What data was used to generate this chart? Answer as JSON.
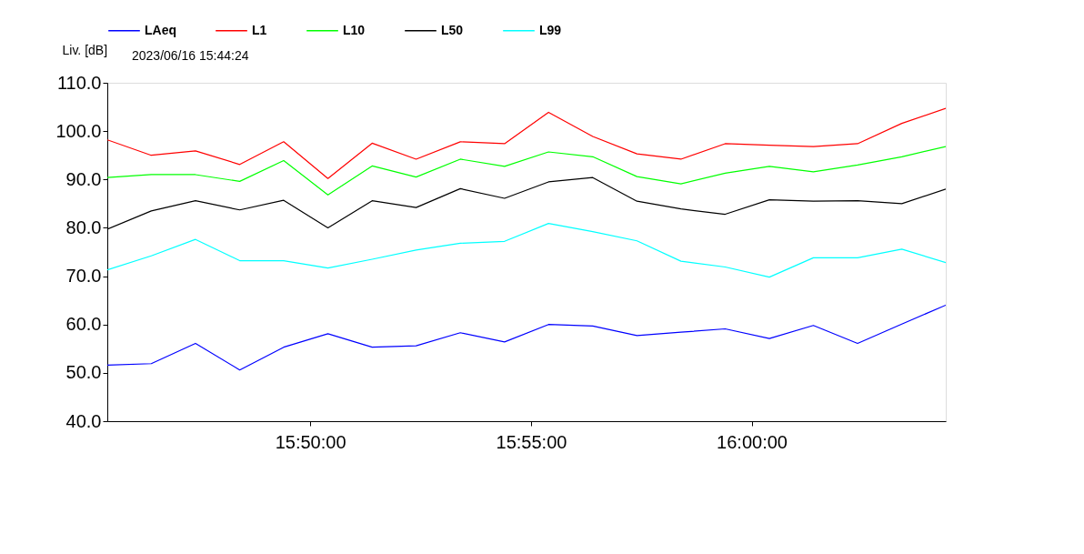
{
  "chart_data": {
    "type": "line",
    "title": "2023/06/16 15:44:24",
    "ylabel": "Liv. [dB]",
    "x": [
      15.7567,
      15.7733,
      15.79,
      15.8067,
      15.8233,
      15.84,
      15.8567,
      15.8733,
      15.89,
      15.9067,
      15.9233,
      15.94,
      15.9567,
      15.9733,
      15.99,
      16.0067,
      16.0233,
      16.04,
      16.0567,
      16.0733
    ],
    "series": [
      {
        "name": "LAeq",
        "color": "#0000ff",
        "values": [
          51.6,
          51.9,
          56.1,
          50.6,
          55.3,
          58.1,
          55.3,
          55.6,
          58.3,
          56.4,
          60.0,
          59.7,
          57.7,
          58.4,
          59.1,
          57.1,
          59.8,
          56.1,
          60.1,
          64.0
        ]
      },
      {
        "name": "L1",
        "color": "#ff0000",
        "values": [
          98.2,
          95.0,
          95.9,
          93.1,
          97.8,
          90.2,
          97.5,
          94.2,
          97.8,
          97.4,
          103.9,
          98.9,
          95.3,
          94.2,
          97.4,
          97.1,
          96.8,
          97.4,
          101.6,
          104.7
        ]
      },
      {
        "name": "L10",
        "color": "#00ff00",
        "values": [
          90.4,
          91.0,
          91.0,
          89.6,
          93.9,
          86.8,
          92.8,
          90.5,
          94.2,
          92.7,
          95.7,
          94.7,
          90.6,
          89.1,
          91.3,
          92.7,
          91.6,
          93.0,
          94.7,
          96.8
        ]
      },
      {
        "name": "L50",
        "color": "#000000",
        "values": [
          79.7,
          83.5,
          85.6,
          83.7,
          85.7,
          80.0,
          85.6,
          84.2,
          88.1,
          86.1,
          89.5,
          90.4,
          85.5,
          83.9,
          82.8,
          85.8,
          85.5,
          85.6,
          85.0,
          88.0
        ]
      },
      {
        "name": "L99",
        "color": "#00ffff",
        "values": [
          71.3,
          74.2,
          77.6,
          73.2,
          73.2,
          71.7,
          73.5,
          75.4,
          76.8,
          77.2,
          80.9,
          79.2,
          77.3,
          73.1,
          71.9,
          69.8,
          73.8,
          73.8,
          75.6,
          72.8
        ]
      }
    ],
    "xlim": [
      15.7567,
      16.0733
    ],
    "xticks": [
      {
        "value": 15.8333,
        "label": "15:50:00"
      },
      {
        "value": 15.9167,
        "label": "15:55:00"
      },
      {
        "value": 16.0,
        "label": "16:00:00"
      }
    ],
    "ylim": [
      40,
      110
    ],
    "yticks": [
      {
        "value": 40,
        "label": "40.0"
      },
      {
        "value": 50,
        "label": "50.0"
      },
      {
        "value": 60,
        "label": "60.0"
      },
      {
        "value": 70,
        "label": "70.0"
      },
      {
        "value": 80,
        "label": "80.0"
      },
      {
        "value": 90,
        "label": "90.0"
      },
      {
        "value": 100,
        "label": "100.0"
      },
      {
        "value": 110,
        "label": "110.0"
      }
    ],
    "grid": false,
    "legend": "top",
    "marker": "none",
    "line_style": "solid"
  }
}
